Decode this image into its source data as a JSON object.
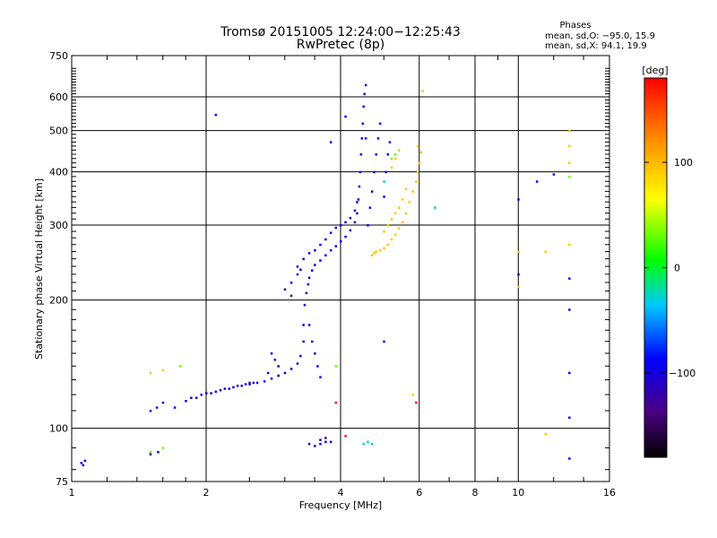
{
  "chart_data": {
    "type": "scatter",
    "title": "Tromsø 20151005 12:24:00−12:25:43",
    "subtitle": "RwPretec (8p)",
    "phases_header": "Phases",
    "phases_o": "mean, sd,O: −95.0, 15.9",
    "phases_x": "mean, sd,X:  94.1, 19.9",
    "xlabel": "Frequency [MHz]",
    "ylabel": "Stationary phase Virtual Height [km]",
    "xscale": "log",
    "yscale": "log",
    "xlim": [
      1,
      16
    ],
    "ylim": [
      75,
      750
    ],
    "xticks": [
      1,
      2,
      4,
      6,
      8,
      10,
      16
    ],
    "yticks": [
      75,
      100,
      200,
      300,
      400,
      500,
      600,
      750
    ],
    "grid": true,
    "colorbar": {
      "label": "[deg]",
      "range": [
        -180,
        180
      ],
      "ticks": [
        -100,
        0,
        100
      ]
    },
    "series": [
      {
        "phase_deg": -95,
        "points": [
          [
            1.05,
            83
          ],
          [
            1.06,
            82
          ],
          [
            1.07,
            84
          ],
          [
            1.5,
            110
          ],
          [
            1.55,
            112
          ],
          [
            1.5,
            87
          ],
          [
            1.56,
            88
          ],
          [
            1.6,
            115
          ],
          [
            1.7,
            112
          ],
          [
            1.8,
            116
          ],
          [
            1.85,
            118
          ],
          [
            1.9,
            118
          ],
          [
            1.95,
            120
          ],
          [
            2.0,
            121
          ],
          [
            2.05,
            121
          ],
          [
            2.1,
            122
          ],
          [
            2.15,
            123
          ],
          [
            2.2,
            124
          ],
          [
            2.25,
            124
          ],
          [
            2.3,
            125
          ],
          [
            2.35,
            126
          ],
          [
            2.4,
            126
          ],
          [
            2.45,
            127
          ],
          [
            2.5,
            127
          ],
          [
            2.55,
            128
          ],
          [
            2.6,
            128
          ],
          [
            2.7,
            129
          ],
          [
            2.8,
            131
          ],
          [
            2.9,
            133
          ],
          [
            3.0,
            135
          ],
          [
            3.1,
            138
          ],
          [
            3.2,
            142
          ],
          [
            3.25,
            148
          ],
          [
            3.3,
            160
          ],
          [
            3.3,
            175
          ],
          [
            3.32,
            195
          ],
          [
            3.35,
            208
          ],
          [
            3.38,
            218
          ],
          [
            3.4,
            226
          ],
          [
            3.45,
            235
          ],
          [
            3.5,
            242
          ],
          [
            3.6,
            248
          ],
          [
            3.7,
            255
          ],
          [
            3.8,
            262
          ],
          [
            3.9,
            268
          ],
          [
            4.0,
            275
          ],
          [
            4.1,
            282
          ],
          [
            4.2,
            292
          ],
          [
            4.3,
            305
          ],
          [
            4.35,
            320
          ],
          [
            4.38,
            345
          ],
          [
            4.4,
            370
          ],
          [
            4.42,
            400
          ],
          [
            4.44,
            440
          ],
          [
            4.46,
            480
          ],
          [
            4.48,
            520
          ],
          [
            4.5,
            570
          ],
          [
            4.52,
            610
          ],
          [
            4.55,
            640
          ],
          [
            3.2,
            240
          ],
          [
            3.3,
            250
          ],
          [
            3.4,
            258
          ],
          [
            3.5,
            262
          ],
          [
            3.6,
            270
          ],
          [
            3.7,
            278
          ],
          [
            3.8,
            288
          ],
          [
            3.9,
            296
          ],
          [
            4.0,
            300
          ],
          [
            4.1,
            305
          ],
          [
            4.2,
            312
          ],
          [
            4.3,
            325
          ],
          [
            4.35,
            340
          ],
          [
            3.1,
            220
          ],
          [
            3.2,
            230
          ],
          [
            3.25,
            236
          ],
          [
            3.4,
            175
          ],
          [
            3.45,
            160
          ],
          [
            3.5,
            150
          ],
          [
            3.55,
            140
          ],
          [
            3.6,
            132
          ],
          [
            2.9,
            140
          ],
          [
            2.85,
            145
          ],
          [
            2.8,
            150
          ],
          [
            2.75,
            135
          ],
          [
            4.6,
            300
          ],
          [
            4.65,
            330
          ],
          [
            4.7,
            360
          ],
          [
            4.75,
            400
          ],
          [
            4.8,
            440
          ],
          [
            4.85,
            480
          ],
          [
            4.9,
            520
          ],
          [
            5.0,
            350
          ],
          [
            5.05,
            400
          ],
          [
            5.1,
            440
          ],
          [
            5.15,
            470
          ],
          [
            3.4,
            92
          ],
          [
            3.5,
            91
          ],
          [
            3.6,
            92
          ],
          [
            3.7,
            93
          ],
          [
            3.8,
            93
          ],
          [
            2.1,
            545
          ],
          [
            4.1,
            540
          ],
          [
            3.8,
            470
          ],
          [
            4.55,
            480
          ],
          [
            10.0,
            345
          ],
          [
            11.0,
            380
          ],
          [
            12.0,
            395
          ],
          [
            10.0,
            230
          ],
          [
            13.0,
            225
          ],
          [
            13.0,
            190
          ],
          [
            13.0,
            135
          ],
          [
            13.0,
            106
          ],
          [
            13.0,
            85
          ],
          [
            5.0,
            160
          ]
        ]
      },
      {
        "phase_deg": 94,
        "points": [
          [
            4.8,
            260
          ],
          [
            4.9,
            262
          ],
          [
            5.0,
            265
          ],
          [
            5.1,
            270
          ],
          [
            5.2,
            278
          ],
          [
            5.3,
            285
          ],
          [
            5.4,
            295
          ],
          [
            5.5,
            305
          ],
          [
            5.6,
            320
          ],
          [
            5.7,
            340
          ],
          [
            5.8,
            360
          ],
          [
            5.9,
            380
          ],
          [
            5.95,
            400
          ],
          [
            6.0,
            420
          ],
          [
            6.05,
            445
          ],
          [
            5.95,
            460
          ],
          [
            5.0,
            290
          ],
          [
            5.1,
            300
          ],
          [
            5.2,
            310
          ],
          [
            5.3,
            320
          ],
          [
            5.4,
            330
          ],
          [
            5.5,
            345
          ],
          [
            5.6,
            365
          ],
          [
            5.2,
            410
          ],
          [
            5.3,
            430
          ],
          [
            5.4,
            450
          ],
          [
            4.7,
            255
          ],
          [
            4.75,
            258
          ],
          [
            5.8,
            120
          ],
          [
            10.0,
            260
          ],
          [
            11.5,
            260
          ],
          [
            13.0,
            270
          ],
          [
            10.0,
            215
          ],
          [
            11.5,
            97
          ],
          [
            13.0,
            420
          ],
          [
            13.0,
            460
          ],
          [
            13.0,
            500
          ],
          [
            6.1,
            620
          ],
          [
            1.5,
            135
          ],
          [
            1.6,
            137
          ]
        ]
      },
      {
        "phase_deg": 30,
        "points": [
          [
            1.5,
            88
          ],
          [
            1.6,
            90
          ],
          [
            1.75,
            140
          ],
          [
            5.2,
            430
          ],
          [
            5.3,
            440
          ],
          [
            3.9,
            140
          ],
          [
            13.0,
            390
          ]
        ]
      },
      {
        "phase_deg": -30,
        "points": [
          [
            4.5,
            92
          ],
          [
            4.6,
            93
          ],
          [
            4.7,
            92
          ],
          [
            6.5,
            330
          ],
          [
            5.0,
            380
          ]
        ]
      },
      {
        "phase_deg": -140,
        "points": [
          [
            3.0,
            212
          ],
          [
            3.1,
            205
          ],
          [
            3.6,
            94
          ],
          [
            3.7,
            95
          ],
          [
            2.5,
            128
          ],
          [
            2.9,
            133
          ]
        ]
      },
      {
        "phase_deg": 170,
        "points": [
          [
            3.9,
            115
          ],
          [
            4.1,
            96
          ],
          [
            5.9,
            115
          ]
        ]
      }
    ]
  }
}
